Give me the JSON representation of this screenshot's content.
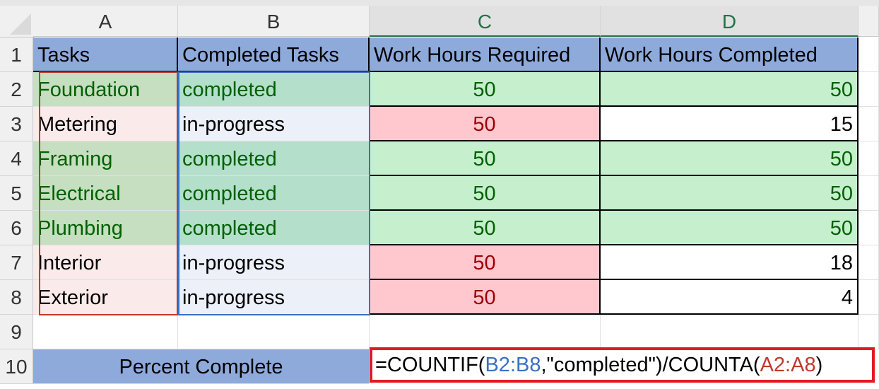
{
  "columns": [
    "A",
    "B",
    "C",
    "D"
  ],
  "rows": [
    "1",
    "2",
    "3",
    "4",
    "5",
    "6",
    "7",
    "8",
    "9",
    "10"
  ],
  "headers": [
    "Tasks",
    "Completed Tasks",
    "Work Hours Required",
    "Work Hours Completed"
  ],
  "data": [
    {
      "task": "Foundation",
      "status": "completed",
      "required": "50",
      "done": "50",
      "ok": true
    },
    {
      "task": "Metering",
      "status": "in-progress",
      "required": "50",
      "done": "15",
      "ok": false
    },
    {
      "task": "Framing",
      "status": "completed",
      "required": "50",
      "done": "50",
      "ok": true
    },
    {
      "task": "Electrical",
      "status": "completed",
      "required": "50",
      "done": "50",
      "ok": true
    },
    {
      "task": "Plumbing",
      "status": "completed",
      "required": "50",
      "done": "50",
      "ok": true
    },
    {
      "task": "Interior",
      "status": "in-progress",
      "required": "50",
      "done": "18",
      "ok": false
    },
    {
      "task": "Exterior",
      "status": "in-progress",
      "required": "50",
      "done": "4",
      "ok": false
    }
  ],
  "summary": {
    "label": "Percent Complete",
    "formula": {
      "p1": "=COUNTIF(",
      "ref1": "B2:B8",
      "p2": ",\"completed\")/COUNTA(",
      "ref2": "A2:A8",
      "p3": ")"
    }
  },
  "colors": {
    "header": "#8eaadb",
    "green_fill": "#c6efce",
    "green_text": "#006100",
    "red_fill": "#ffc7ce",
    "red_text": "#9c0006",
    "highlight_border": "#e11b22"
  }
}
